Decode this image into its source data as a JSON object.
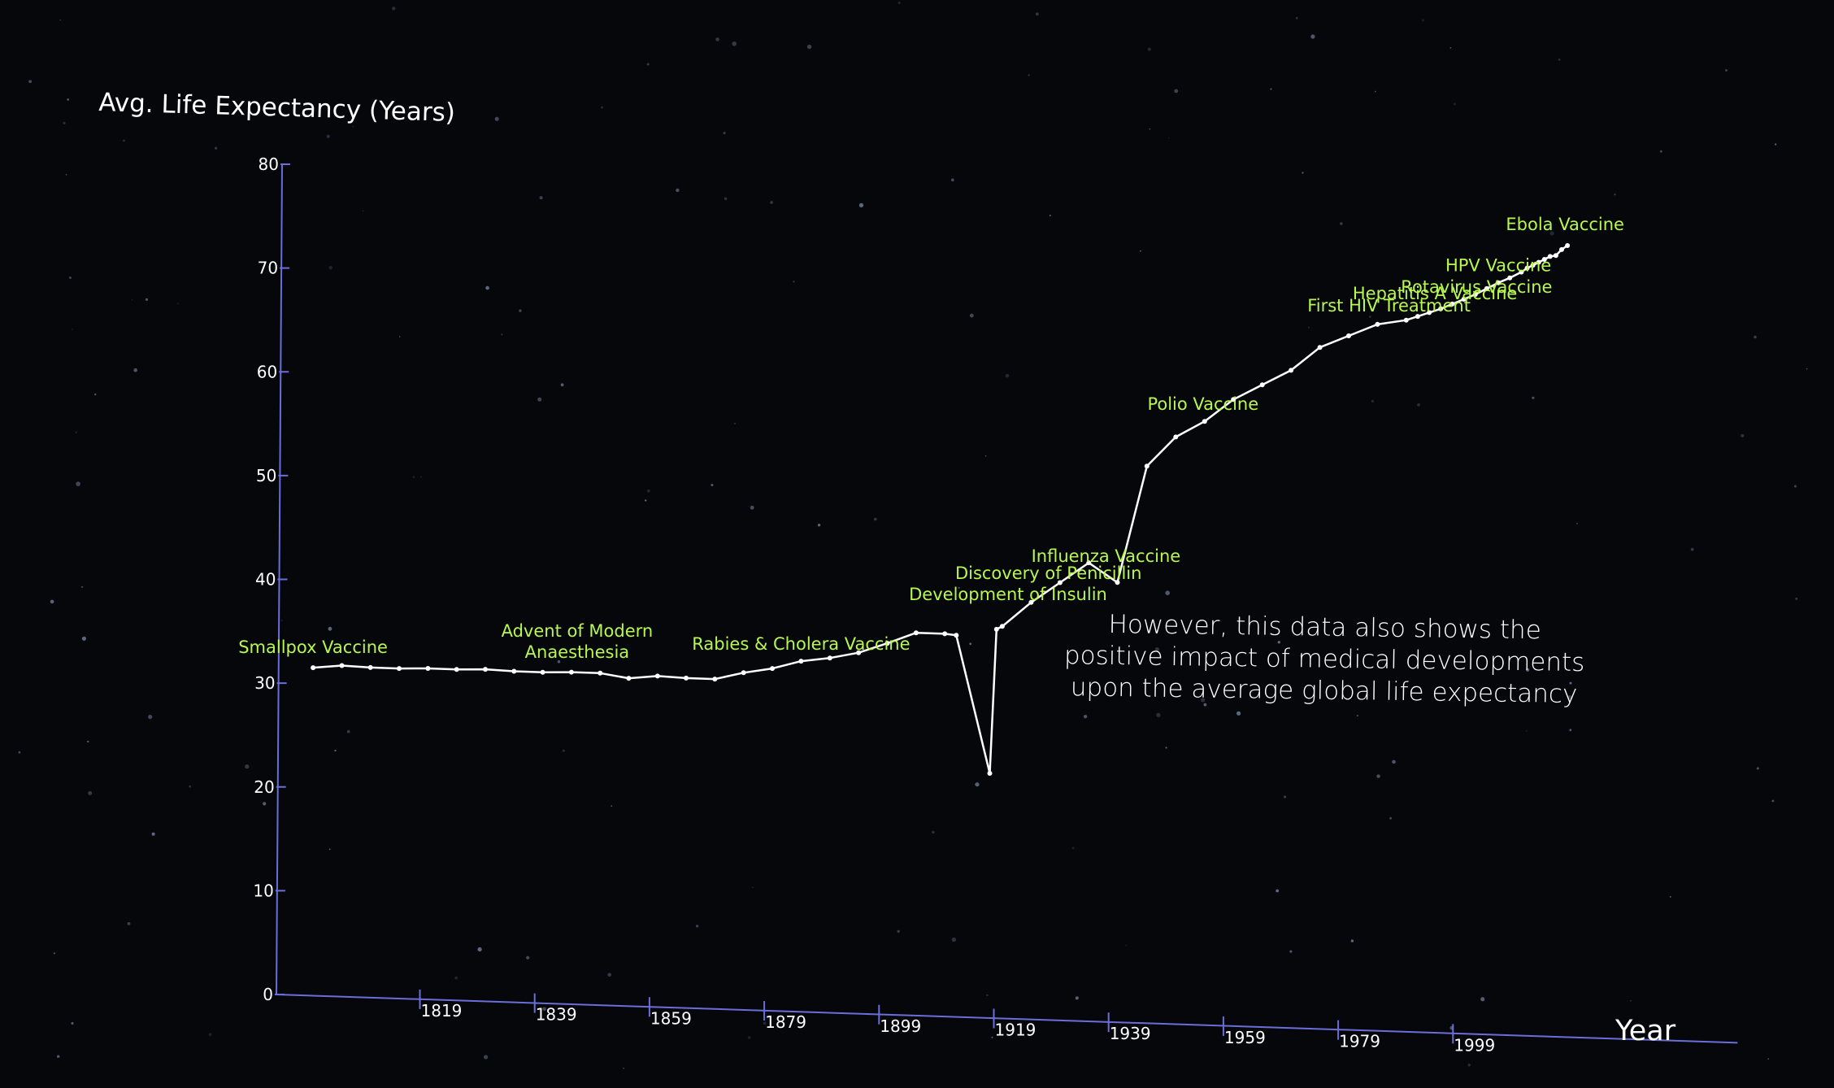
{
  "chart_data": {
    "type": "line",
    "title": "",
    "ylabel": "Avg. Life Expectancy (Years)",
    "xlabel": "Year",
    "ylim": [
      0,
      80
    ],
    "y_ticks": [
      "0",
      "10",
      "20",
      "30",
      "40",
      "50",
      "60",
      "70",
      "80"
    ],
    "x_ticks": [
      "1819",
      "1839",
      "1859",
      "1879",
      "1899",
      "1919",
      "1939",
      "1959",
      "1979",
      "1999"
    ],
    "series": [
      {
        "points": [
          {
            "x": 1800,
            "y": 31.6
          },
          {
            "x": 1805,
            "y": 31.9
          },
          {
            "x": 1810,
            "y": 31.8
          },
          {
            "x": 1815,
            "y": 31.8
          },
          {
            "x": 1820,
            "y": 31.9
          },
          {
            "x": 1825,
            "y": 31.9
          },
          {
            "x": 1830,
            "y": 32.0
          },
          {
            "x": 1835,
            "y": 31.9
          },
          {
            "x": 1840,
            "y": 31.9
          },
          {
            "x": 1845,
            "y": 32.0
          },
          {
            "x": 1850,
            "y": 32.0
          },
          {
            "x": 1855,
            "y": 31.6
          },
          {
            "x": 1860,
            "y": 31.9
          },
          {
            "x": 1865,
            "y": 31.8
          },
          {
            "x": 1870,
            "y": 31.8
          },
          {
            "x": 1875,
            "y": 32.5
          },
          {
            "x": 1880,
            "y": 33.0
          },
          {
            "x": 1885,
            "y": 33.8
          },
          {
            "x": 1890,
            "y": 34.2
          },
          {
            "x": 1895,
            "y": 34.8
          },
          {
            "x": 1900,
            "y": 35.8
          },
          {
            "x": 1905,
            "y": 36.9
          },
          {
            "x": 1910,
            "y": 36.9
          },
          {
            "x": 1912,
            "y": 36.8
          },
          {
            "x": 1918,
            "y": 23.6
          },
          {
            "x": 1919,
            "y": 37.5
          },
          {
            "x": 1920,
            "y": 37.8
          },
          {
            "x": 1925,
            "y": 40.2
          },
          {
            "x": 1930,
            "y": 42.2
          },
          {
            "x": 1935,
            "y": 44.2
          },
          {
            "x": 1940,
            "y": 42.4
          },
          {
            "x": 1945,
            "y": 53.7
          },
          {
            "x": 1950,
            "y": 56.6
          },
          {
            "x": 1955,
            "y": 58.2
          },
          {
            "x": 1960,
            "y": 60.4
          },
          {
            "x": 1965,
            "y": 61.9
          },
          {
            "x": 1970,
            "y": 63.4
          },
          {
            "x": 1975,
            "y": 65.7
          },
          {
            "x": 1980,
            "y": 66.9
          },
          {
            "x": 1985,
            "y": 68.1
          },
          {
            "x": 1990,
            "y": 68.6
          },
          {
            "x": 1992,
            "y": 69.0
          },
          {
            "x": 1994,
            "y": 69.4
          },
          {
            "x": 1996,
            "y": 69.8
          },
          {
            "x": 1998,
            "y": 70.3
          },
          {
            "x": 2000,
            "y": 70.8
          },
          {
            "x": 2002,
            "y": 71.3
          },
          {
            "x": 2004,
            "y": 71.9
          },
          {
            "x": 2006,
            "y": 72.5
          },
          {
            "x": 2008,
            "y": 73.0
          },
          {
            "x": 2010,
            "y": 73.6
          },
          {
            "x": 2011,
            "y": 74.0
          },
          {
            "x": 2012,
            "y": 74.3
          },
          {
            "x": 2013,
            "y": 74.6
          },
          {
            "x": 2014,
            "y": 74.9
          },
          {
            "x": 2015,
            "y": 75.2
          },
          {
            "x": 2016,
            "y": 75.3
          },
          {
            "x": 2017,
            "y": 75.9
          },
          {
            "x": 2018,
            "y": 76.3
          }
        ]
      }
    ],
    "milestones": [
      {
        "label": "Smallpox Vaccine",
        "year": 1800,
        "y": 31.6
      },
      {
        "label": "Advent of Modern\nAnaesthesia",
        "year": 1846,
        "y": 32.0
      },
      {
        "label": "Rabies & Cholera Vaccine",
        "year": 1885,
        "y": 33.8
      },
      {
        "label": "Development of Insulin",
        "year": 1921,
        "y": 38.3
      },
      {
        "label": "Discovery of Penicillin",
        "year": 1928,
        "y": 41.4
      },
      {
        "label": "Influenza Vaccine",
        "year": 1938,
        "y": 43.4
      },
      {
        "label": "Polio Vaccine",
        "year": 1955,
        "y": 58.2
      },
      {
        "label": "First HIV Treatment",
        "year": 1987,
        "y": 68.3
      },
      {
        "label": "Hepatitis A Vaccine",
        "year": 1995,
        "y": 69.6
      },
      {
        "label": "Rotavirus Vaccine",
        "year": 1998,
        "y": 70.3
      },
      {
        "label": "HPV Vaccine",
        "year": 2006,
        "y": 72.5
      },
      {
        "label": "Ebola Vaccine",
        "year": 2019,
        "y": 76.4
      }
    ],
    "colors": {
      "line": "#ffffff",
      "axis": "#6b6ed8",
      "milestone_text": "#b7f74f",
      "text": "#ffffff"
    },
    "grid": false
  },
  "annotation": "However, this data also shows the positive impact of medical developments upon the average global life expectancy"
}
